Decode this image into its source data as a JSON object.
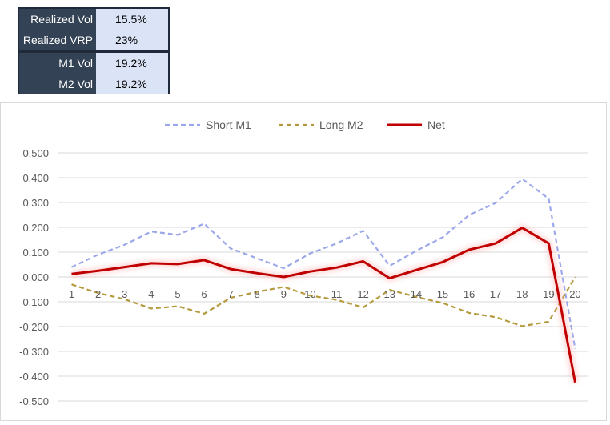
{
  "stats_table": {
    "rows": [
      {
        "label": "Realized Vol",
        "value": "15.5%"
      },
      {
        "label": "Realized VRP",
        "value": "23%"
      },
      {
        "label": "M1 Vol",
        "value": "19.2%"
      },
      {
        "label": "M2 Vol",
        "value": "19.2%"
      }
    ]
  },
  "chart_data": {
    "type": "line",
    "title": "",
    "xlabel": "",
    "ylabel": "",
    "x": [
      1,
      2,
      3,
      4,
      5,
      6,
      7,
      8,
      9,
      10,
      11,
      12,
      13,
      14,
      15,
      16,
      17,
      18,
      19,
      20
    ],
    "ylim": [
      -0.5,
      0.5
    ],
    "yticks": [
      "0.500",
      "0.400",
      "0.300",
      "0.200",
      "0.100",
      "0.000",
      "-0.100",
      "-0.200",
      "-0.300",
      "-0.400",
      "-0.500"
    ],
    "grid": true,
    "legend_position": "top",
    "series": [
      {
        "name": "Short M1",
        "color": "#9da8ea",
        "style": "dashed",
        "values": [
          0.04,
          0.09,
          0.13,
          0.183,
          0.17,
          0.215,
          0.115,
          0.075,
          0.035,
          0.095,
          0.135,
          0.186,
          0.045,
          0.105,
          0.16,
          0.25,
          0.298,
          0.395,
          0.315,
          -0.29
        ]
      },
      {
        "name": "Long M2",
        "color": "#b59a3c",
        "style": "dashed",
        "values": [
          -0.03,
          -0.065,
          -0.09,
          -0.127,
          -0.118,
          -0.148,
          -0.084,
          -0.06,
          -0.04,
          -0.075,
          -0.092,
          -0.123,
          -0.052,
          -0.08,
          -0.105,
          -0.145,
          -0.162,
          -0.198,
          -0.18,
          0.0
        ]
      },
      {
        "name": "Net",
        "color": "#c00000",
        "style": "solid",
        "values": [
          0.012,
          0.025,
          0.04,
          0.055,
          0.052,
          0.068,
          0.032,
          0.015,
          0.0,
          0.022,
          0.038,
          0.063,
          -0.005,
          0.028,
          0.06,
          0.11,
          0.135,
          0.198,
          0.135,
          -0.425
        ]
      }
    ]
  }
}
